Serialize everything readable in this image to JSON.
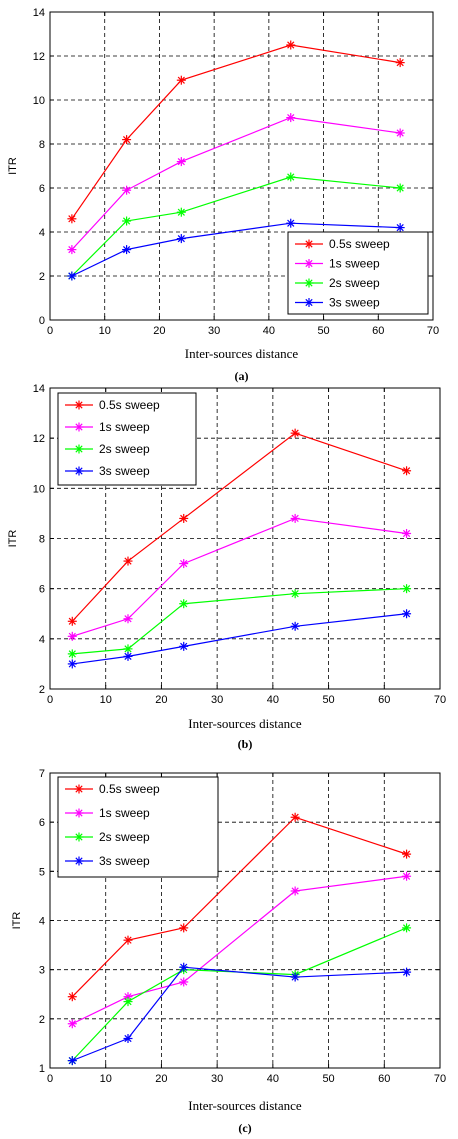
{
  "chart_data": [
    {
      "type": "line",
      "caption": "(a)",
      "xlabel": "Inter-sources distance",
      "ylabel": "ITR",
      "xlim": [
        0,
        70
      ],
      "ylim": [
        0,
        14
      ],
      "xticks": [
        0,
        10,
        20,
        30,
        40,
        50,
        60,
        70
      ],
      "yticks": [
        0,
        2,
        4,
        6,
        8,
        10,
        12,
        14
      ],
      "grid": true,
      "legend_position": "bottom-right",
      "x": [
        4,
        14,
        24,
        44,
        64
      ],
      "series": [
        {
          "name": "0.5s sweep",
          "color": "#ff0000",
          "values": [
            4.6,
            8.2,
            10.9,
            12.5,
            11.7
          ]
        },
        {
          "name": "1s sweep",
          "color": "#ff00ff",
          "values": [
            3.2,
            5.9,
            7.2,
            9.2,
            8.5
          ]
        },
        {
          "name": "2s sweep",
          "color": "#00ff00",
          "values": [
            2.0,
            4.5,
            4.9,
            6.5,
            6.0
          ]
        },
        {
          "name": "3s sweep",
          "color": "#0000ff",
          "values": [
            2.0,
            3.2,
            3.7,
            4.4,
            4.2
          ]
        }
      ]
    },
    {
      "type": "line",
      "caption": "(b)",
      "xlabel": "Inter-sources distance",
      "ylabel": "ITR",
      "xlim": [
        0,
        70
      ],
      "ylim": [
        2,
        14
      ],
      "xticks": [
        0,
        10,
        20,
        30,
        40,
        50,
        60,
        70
      ],
      "yticks": [
        2,
        4,
        6,
        8,
        10,
        12,
        14
      ],
      "grid": true,
      "legend_position": "top-left",
      "x": [
        4,
        14,
        24,
        44,
        64
      ],
      "series": [
        {
          "name": "0.5s sweep",
          "color": "#ff0000",
          "values": [
            4.7,
            7.1,
            8.8,
            12.2,
            10.7
          ]
        },
        {
          "name": "1s sweep",
          "color": "#ff00ff",
          "values": [
            4.1,
            4.8,
            7.0,
            8.8,
            8.2
          ]
        },
        {
          "name": "2s sweep",
          "color": "#00ff00",
          "values": [
            3.4,
            3.6,
            5.4,
            5.8,
            6.0
          ]
        },
        {
          "name": "3s sweep",
          "color": "#0000ff",
          "values": [
            3.0,
            3.3,
            3.7,
            4.5,
            5.0
          ]
        }
      ]
    },
    {
      "type": "line",
      "caption": "(c)",
      "xlabel": "Inter-sources distance",
      "ylabel": "ITR",
      "xlim": [
        0,
        70
      ],
      "ylim": [
        1,
        7
      ],
      "xticks": [
        0,
        10,
        20,
        30,
        40,
        50,
        60,
        70
      ],
      "yticks": [
        1,
        2,
        3,
        4,
        5,
        6,
        7
      ],
      "grid": true,
      "legend_position": "top-left",
      "x": [
        4,
        14,
        24,
        44,
        64
      ],
      "series": [
        {
          "name": "0.5s sweep",
          "color": "#ff0000",
          "values": [
            2.45,
            3.6,
            3.85,
            6.1,
            5.35
          ]
        },
        {
          "name": "1s sweep",
          "color": "#ff00ff",
          "values": [
            1.9,
            2.45,
            2.75,
            4.6,
            4.9
          ]
        },
        {
          "name": "2s sweep",
          "color": "#00ff00",
          "values": [
            1.15,
            2.35,
            3.0,
            2.9,
            3.85
          ]
        },
        {
          "name": "3s sweep",
          "color": "#0000ff",
          "values": [
            1.15,
            1.6,
            3.05,
            2.85,
            2.95
          ]
        }
      ]
    }
  ]
}
